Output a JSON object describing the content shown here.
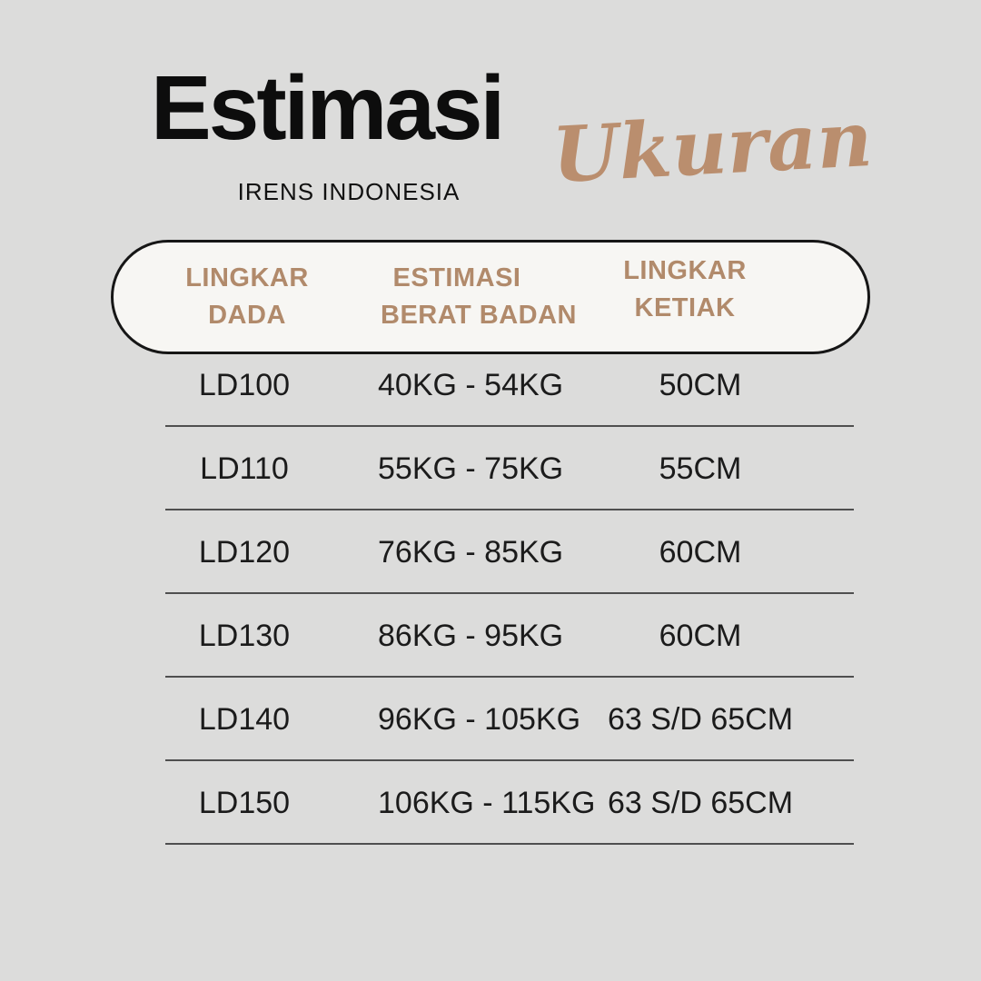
{
  "page": {
    "background_color": "#dcdcdb",
    "accent_brown": "#b18a6b",
    "script_brown": "#ba8e6e",
    "pill_background": "#f7f6f3",
    "pill_border_color": "#161616"
  },
  "header": {
    "title_main": "Estimasi",
    "title_script": "Ukuran",
    "subtitle": "IRENS INDONESIA"
  },
  "table": {
    "columns": [
      {
        "line1": "LINGKAR",
        "line2": "DADA"
      },
      {
        "line1": "ESTIMASI",
        "line2": "BERAT BADAN"
      },
      {
        "line1": "LINGKAR",
        "line2": "KETIAK"
      }
    ],
    "rows": [
      {
        "size": "LD100",
        "weight": "40KG - 54KG",
        "armpit": "50CM"
      },
      {
        "size": "LD110",
        "weight": "55KG - 75KG",
        "armpit": "55CM"
      },
      {
        "size": "LD120",
        "weight": "76KG - 85KG",
        "armpit": "60CM"
      },
      {
        "size": "LD130",
        "weight": "86KG - 95KG",
        "armpit": "60CM"
      },
      {
        "size": "LD140",
        "weight": "96KG - 105KG",
        "armpit": "63 S/D 65CM"
      },
      {
        "size": "LD150",
        "weight": "106KG - 115KG",
        "armpit": "63 S/D 65CM"
      }
    ]
  },
  "chart_data": {
    "type": "table",
    "title": "Estimasi Ukuran",
    "subtitle": "IRENS INDONESIA",
    "columns": [
      "LINGKAR DADA",
      "ESTIMASI BERAT BADAN",
      "LINGKAR KETIAK"
    ],
    "rows": [
      [
        "LD100",
        "40KG - 54KG",
        "50CM"
      ],
      [
        "LD110",
        "55KG - 75KG",
        "55CM"
      ],
      [
        "LD120",
        "76KG - 85KG",
        "60CM"
      ],
      [
        "LD130",
        "86KG - 95KG",
        "60CM"
      ],
      [
        "LD140",
        "96KG - 105KG",
        "63 S/D 65CM"
      ],
      [
        "LD150",
        "106KG - 115KG",
        "63 S/D 65CM"
      ]
    ]
  }
}
